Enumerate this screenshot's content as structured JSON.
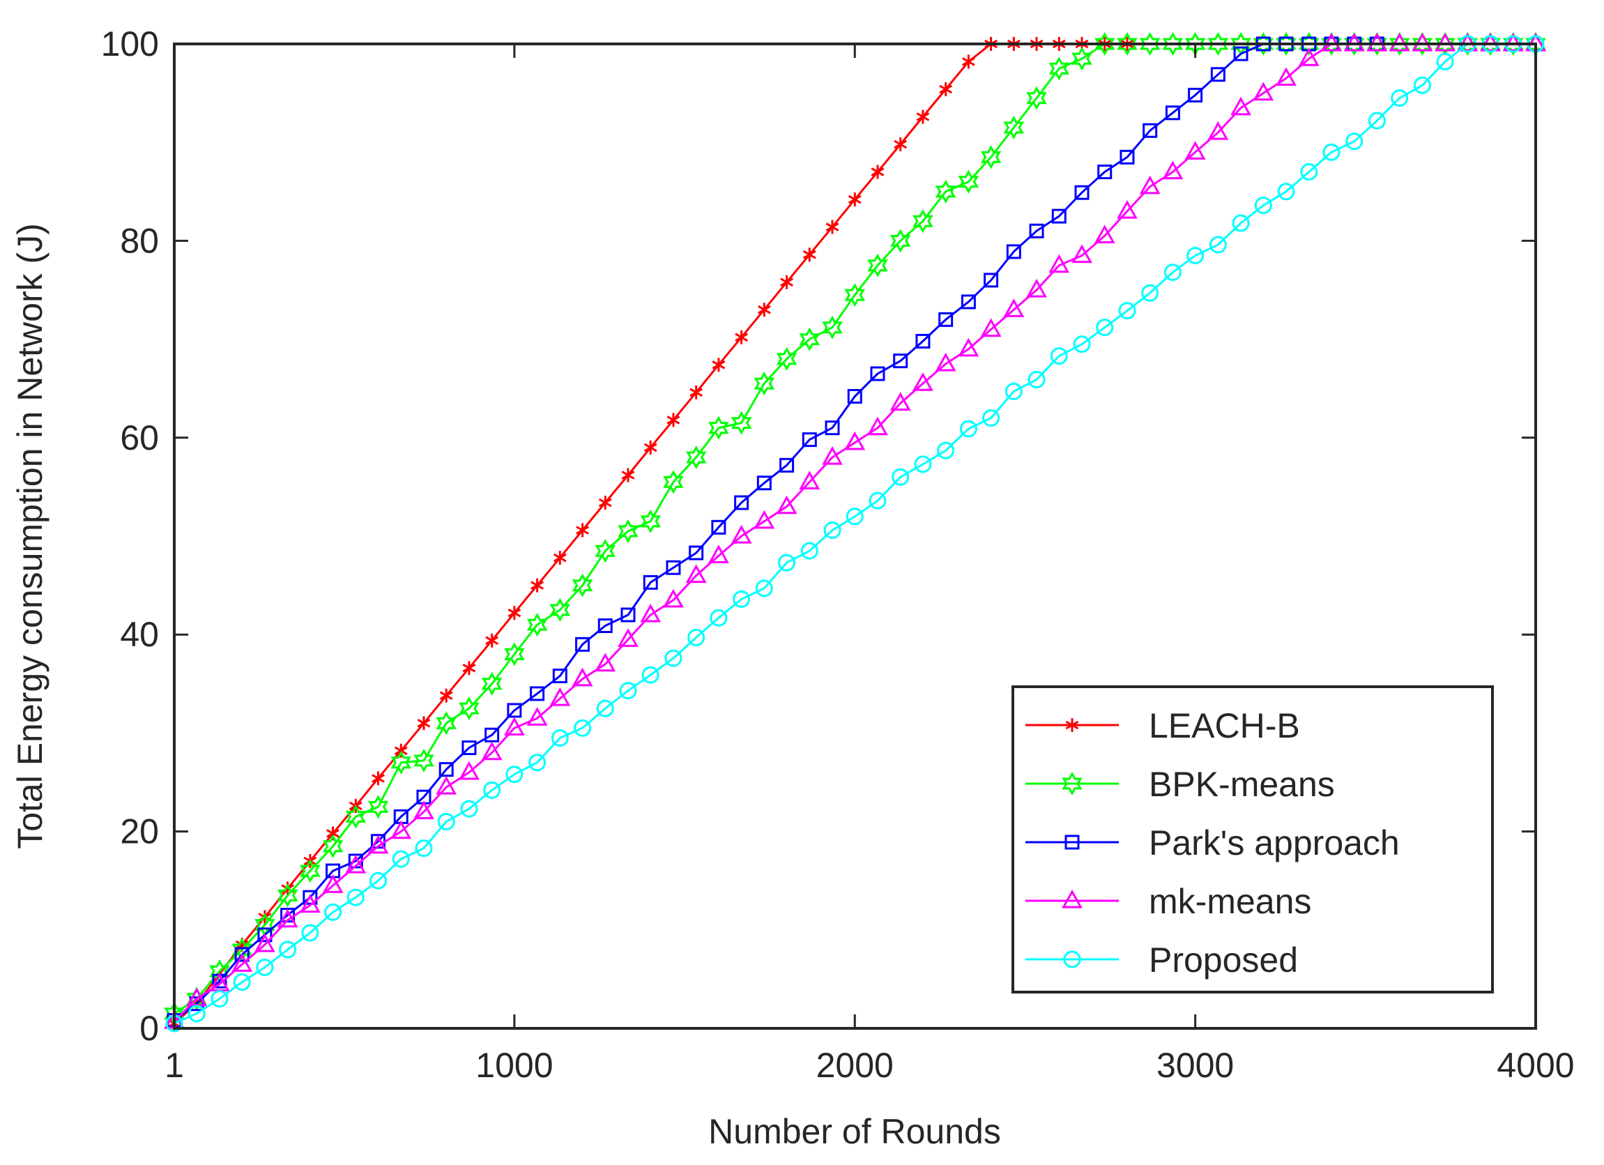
{
  "chart_data": {
    "type": "line",
    "title": "",
    "xlabel": "Number of Rounds",
    "ylabel": "Total Energy consumption in Network (J)",
    "xlim": [
      1,
      4000
    ],
    "ylim": [
      0,
      100
    ],
    "xticks": [
      1,
      1000,
      2000,
      3000,
      4000
    ],
    "yticks": [
      0,
      20,
      40,
      60,
      80,
      100
    ],
    "grid": false,
    "legend_position": "bottom-right",
    "series": [
      {
        "name": "LEACH-B",
        "color": "#ff0000",
        "marker": "asterisk",
        "x": [
          1,
          67,
          200,
          267,
          334,
          400,
          467,
          534,
          600,
          667,
          734,
          800,
          867,
          934,
          1000,
          1067,
          1134,
          1200,
          1267,
          1334,
          1400,
          1467,
          1534,
          1600,
          1667,
          1734,
          1800,
          1867,
          1934,
          2000,
          2067,
          2134,
          2200,
          2267,
          2334,
          2400,
          2467,
          2534,
          2600,
          2667,
          2734,
          2800
        ],
        "y": [
          0.5,
          2.5,
          8.5,
          11.3,
          14.2,
          17,
          19.8,
          22.6,
          25.4,
          28.2,
          31,
          33.8,
          36.6,
          39.4,
          42.2,
          45,
          47.8,
          50.6,
          53.4,
          56.2,
          59,
          61.8,
          64.6,
          67.4,
          70.2,
          73,
          75.8,
          78.6,
          81.4,
          84.2,
          87,
          89.8,
          92.6,
          95.4,
          98.2,
          100,
          100,
          100,
          100,
          100,
          100,
          100
        ]
      },
      {
        "name": "BPK-means",
        "color": "#00ff00",
        "marker": "hexagram",
        "x": [
          1,
          67,
          134,
          200,
          267,
          334,
          400,
          467,
          534,
          600,
          667,
          734,
          800,
          867,
          934,
          1000,
          1067,
          1134,
          1200,
          1267,
          1334,
          1400,
          1467,
          1534,
          1600,
          1667,
          1734,
          1800,
          1867,
          1934,
          2000,
          2067,
          2134,
          2200,
          2267,
          2334,
          2400,
          2467,
          2534,
          2600,
          2667,
          2734,
          2800,
          2867,
          2934,
          3000,
          3067,
          3134,
          3200,
          3267,
          3334,
          3400,
          3467,
          3534,
          3600,
          3667,
          3734,
          3800,
          3867,
          3934,
          4000
        ],
        "y": [
          1.5,
          3,
          5.8,
          8,
          10.5,
          13.5,
          16,
          18.5,
          21.5,
          22.5,
          27,
          27.2,
          31,
          32.5,
          35,
          38,
          41,
          42.5,
          45,
          48.5,
          50.5,
          51.5,
          55.5,
          58,
          61,
          61.5,
          65.5,
          68,
          70,
          71.2,
          74.5,
          77.5,
          80,
          82,
          85,
          86,
          88.5,
          91.5,
          94.5,
          97.5,
          98.5,
          100,
          100,
          100,
          100,
          100,
          100,
          100,
          100,
          100,
          100,
          100,
          100,
          100,
          100,
          100,
          100,
          100,
          100,
          100,
          100
        ]
      },
      {
        "name": "Park's approach",
        "color": "#0000ff",
        "marker": "square",
        "x": [
          1,
          67,
          134,
          200,
          267,
          334,
          400,
          467,
          534,
          600,
          667,
          734,
          800,
          867,
          934,
          1000,
          1067,
          1134,
          1200,
          1267,
          1334,
          1400,
          1467,
          1534,
          1600,
          1667,
          1734,
          1800,
          1867,
          1934,
          2000,
          2067,
          2134,
          2200,
          2267,
          2334,
          2400,
          2467,
          2534,
          2600,
          2667,
          2734,
          2800,
          2867,
          2934,
          3000,
          3067,
          3134,
          3200,
          3267,
          3334,
          3400,
          3467,
          3534
        ],
        "y": [
          0.8,
          2.5,
          4.8,
          7.5,
          9.5,
          11.5,
          13.3,
          16,
          17,
          19,
          21.5,
          23.5,
          26.3,
          28.5,
          29.8,
          32.3,
          34,
          35.8,
          39,
          40.9,
          42,
          45.3,
          46.8,
          48.3,
          50.9,
          53.4,
          55.4,
          57.2,
          59.8,
          61,
          64.2,
          66.5,
          67.8,
          69.8,
          72,
          73.8,
          76,
          78.9,
          81,
          82.5,
          84.9,
          87,
          88.5,
          91.2,
          93,
          94.8,
          96.9,
          99,
          100,
          100,
          100,
          100,
          100,
          100
        ]
      },
      {
        "name": "mk-means",
        "color": "#ff00ff",
        "marker": "triangle",
        "x": [
          1,
          67,
          134,
          200,
          267,
          334,
          400,
          467,
          534,
          600,
          667,
          734,
          800,
          867,
          934,
          1000,
          1067,
          1134,
          1200,
          1267,
          1334,
          1400,
          1467,
          1534,
          1600,
          1667,
          1734,
          1800,
          1867,
          1934,
          2000,
          2067,
          2134,
          2200,
          2267,
          2334,
          2400,
          2467,
          2534,
          2600,
          2667,
          2734,
          2800,
          2867,
          2934,
          3000,
          3067,
          3134,
          3200,
          3267,
          3334,
          3400,
          3467,
          3534,
          3600,
          3667,
          3734,
          3800,
          3867,
          3934,
          4000
        ],
        "y": [
          0.7,
          3,
          4.5,
          6.5,
          8.5,
          11,
          12.5,
          14.5,
          16.5,
          18.5,
          20,
          22,
          24.5,
          26,
          28,
          30.5,
          31.5,
          33.5,
          35.5,
          37,
          39.5,
          42,
          43.5,
          46,
          48,
          50,
          51.5,
          53,
          55.5,
          58,
          59.5,
          61,
          63.5,
          65.5,
          67.5,
          69,
          71,
          73,
          75,
          77.5,
          78.5,
          80.5,
          83,
          85.5,
          87,
          89,
          91,
          93.5,
          95,
          96.5,
          98.5,
          100,
          100,
          100,
          100,
          100,
          100,
          100,
          100,
          100,
          100
        ]
      },
      {
        "name": "Proposed",
        "color": "#00ffff",
        "marker": "circle",
        "x": [
          1,
          67,
          134,
          200,
          267,
          334,
          400,
          467,
          534,
          600,
          667,
          734,
          800,
          867,
          934,
          1000,
          1067,
          1134,
          1200,
          1267,
          1334,
          1400,
          1467,
          1534,
          1600,
          1667,
          1734,
          1800,
          1867,
          1934,
          2000,
          2067,
          2134,
          2200,
          2267,
          2334,
          2400,
          2467,
          2534,
          2600,
          2667,
          2734,
          2800,
          2867,
          2934,
          3000,
          3067,
          3134,
          3200,
          3267,
          3334,
          3400,
          3467,
          3534,
          3600,
          3667,
          3734,
          3800,
          3867,
          3934,
          4000
        ],
        "y": [
          0.5,
          1.5,
          3,
          4.7,
          6.2,
          8,
          9.7,
          11.8,
          13.3,
          15,
          17.2,
          18.3,
          21,
          22.3,
          24.2,
          25.8,
          27,
          29.5,
          30.5,
          32.5,
          34.3,
          35.9,
          37.6,
          39.7,
          41.7,
          43.6,
          44.7,
          47.3,
          48.5,
          50.6,
          52,
          53.6,
          56,
          57.3,
          58.7,
          60.9,
          62,
          64.7,
          65.9,
          68.3,
          69.5,
          71.2,
          72.9,
          74.7,
          76.8,
          78.5,
          79.6,
          81.8,
          83.6,
          85,
          87,
          89,
          90.1,
          92.2,
          94.5,
          95.8,
          98.2,
          100,
          100,
          100,
          100
        ]
      }
    ]
  }
}
